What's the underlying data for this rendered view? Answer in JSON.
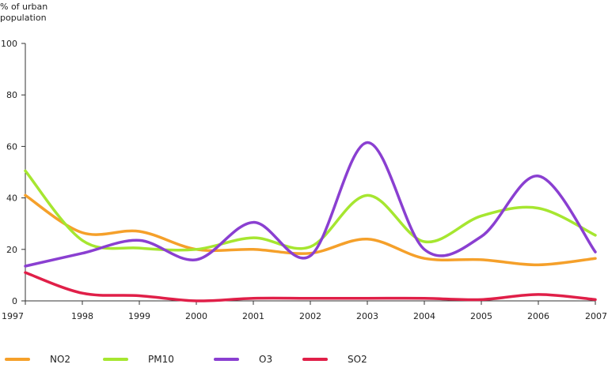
{
  "chart_data": {
    "type": "line",
    "title": "",
    "ylabel_lines": [
      "% of urban",
      "population"
    ],
    "xlabel": "",
    "ylim": [
      0,
      100
    ],
    "yticks": [
      0,
      20,
      40,
      60,
      80,
      100
    ],
    "x": [
      "1997",
      "1998",
      "1999",
      "2000",
      "2001",
      "2002",
      "2003",
      "2004",
      "2005",
      "2006",
      "2007"
    ],
    "series": [
      {
        "name": "NO2",
        "color": "#f5a02a",
        "values": [
          41,
          26.5,
          27,
          20,
          20,
          18.5,
          24,
          16.5,
          16,
          14,
          16.5
        ]
      },
      {
        "name": "PM10",
        "color": "#a6e630",
        "values": [
          50.5,
          23.5,
          20.5,
          20,
          24.5,
          21,
          41,
          23,
          33,
          36,
          25.5
        ]
      },
      {
        "name": "O3",
        "color": "#8a3fd1",
        "values": [
          13.5,
          18.5,
          23.5,
          16,
          30.5,
          17.5,
          61.5,
          20,
          25,
          48.5,
          19
        ]
      },
      {
        "name": "SO2",
        "color": "#e01f48",
        "values": [
          11,
          3,
          2,
          0,
          1,
          1,
          1,
          1,
          0.5,
          2.5,
          0.5
        ]
      }
    ],
    "legend_position": "bottom"
  }
}
